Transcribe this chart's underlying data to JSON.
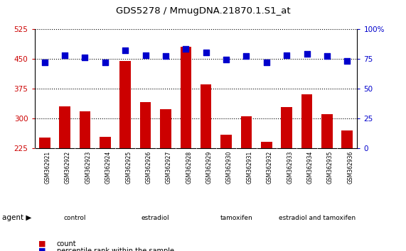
{
  "title": "GDS5278 / MmugDNA.21870.1.S1_at",
  "categories": [
    "GSM362921",
    "GSM362922",
    "GSM362923",
    "GSM362924",
    "GSM362925",
    "GSM362926",
    "GSM362927",
    "GSM362928",
    "GSM362929",
    "GSM362930",
    "GSM362931",
    "GSM362932",
    "GSM362933",
    "GSM362934",
    "GSM362935",
    "GSM362936"
  ],
  "bar_values": [
    252,
    330,
    318,
    253,
    445,
    340,
    322,
    480,
    385,
    258,
    305,
    240,
    328,
    360,
    310,
    270
  ],
  "dot_values": [
    72,
    78,
    76,
    72,
    82,
    78,
    77,
    83,
    80,
    74,
    77,
    72,
    78,
    79,
    77,
    73
  ],
  "bar_color": "#cc0000",
  "dot_color": "#0000cc",
  "left_ylim": [
    225,
    525
  ],
  "left_yticks": [
    225,
    300,
    375,
    450,
    525
  ],
  "right_ylim": [
    0,
    100
  ],
  "right_yticks": [
    0,
    25,
    50,
    75,
    100
  ],
  "right_yticklabels": [
    "0",
    "25",
    "50",
    "75",
    "100%"
  ],
  "groups": [
    {
      "label": "control",
      "start": 0,
      "end": 3,
      "color": "#ccffcc"
    },
    {
      "label": "estradiol",
      "start": 4,
      "end": 7,
      "color": "#66cc66"
    },
    {
      "label": "tamoxifen",
      "start": 8,
      "end": 11,
      "color": "#99dd99"
    },
    {
      "label": "estradiol and tamoxifen",
      "start": 12,
      "end": 15,
      "color": "#55cc55"
    }
  ],
  "tick_bg_color": "#c8c8c8",
  "background_color": "#ffffff",
  "plot_bg_color": "#ffffff",
  "tick_label_color_left": "#cc0000",
  "tick_label_color_right": "#0000cc"
}
